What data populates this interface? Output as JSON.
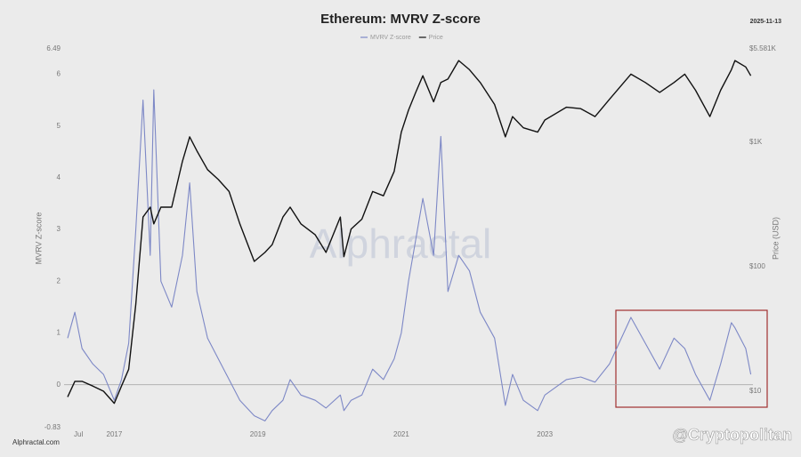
{
  "chart_data": {
    "type": "line",
    "title": "Ethereum: MVRV Z-score",
    "date": "2025-11-13",
    "ylabel": "MVRV Z-score",
    "y2label": "Price (USD)",
    "watermark": "Alphractal",
    "footer": "Alphractal.com",
    "credit": "@Cryptopolitan",
    "y2log": true,
    "xlim": [
      2016.3,
      2025.9
    ],
    "xticks": [
      {
        "value": 2016.5,
        "label": "Jul"
      },
      2017,
      2019,
      2021,
      2023
    ],
    "ylim": [
      -0.83,
      6.49
    ],
    "yticks": [
      -0.83,
      0,
      1,
      2,
      3,
      4,
      5,
      6,
      6.49
    ],
    "y2lim": [
      5.1,
      5581
    ],
    "y2ticks": [
      {
        "value": 10,
        "label": "$10"
      },
      {
        "value": 100,
        "label": "$100"
      },
      {
        "value": 1000,
        "label": "$1K"
      },
      {
        "value": 5581,
        "label": "$5.581K"
      }
    ],
    "x": [
      2016.35,
      2016.45,
      2016.55,
      2016.7,
      2016.85,
      2017.0,
      2017.1,
      2017.2,
      2017.3,
      2017.4,
      2017.5,
      2017.55,
      2017.65,
      2017.8,
      2017.95,
      2018.05,
      2018.15,
      2018.3,
      2018.45,
      2018.6,
      2018.75,
      2018.95,
      2019.1,
      2019.2,
      2019.35,
      2019.45,
      2019.6,
      2019.8,
      2019.95,
      2020.15,
      2020.2,
      2020.3,
      2020.45,
      2020.6,
      2020.75,
      2020.9,
      2021.0,
      2021.1,
      2021.2,
      2021.3,
      2021.45,
      2021.55,
      2021.65,
      2021.8,
      2021.95,
      2022.1,
      2022.3,
      2022.45,
      2022.55,
      2022.7,
      2022.9,
      2023.0,
      2023.3,
      2023.5,
      2023.7,
      2023.9,
      2024.2,
      2024.4,
      2024.6,
      2024.8,
      2024.95,
      2025.1,
      2025.3,
      2025.45,
      2025.6,
      2025.65,
      2025.8,
      2025.87
    ],
    "series": [
      {
        "name": "MVRV Z-score",
        "color": "#7d88c6",
        "values": [
          0.9,
          1.4,
          0.7,
          0.4,
          0.2,
          -0.3,
          0.1,
          0.8,
          3.0,
          5.5,
          2.5,
          5.7,
          2.0,
          1.5,
          2.5,
          3.9,
          1.8,
          0.9,
          0.5,
          0.1,
          -0.3,
          -0.6,
          -0.7,
          -0.5,
          -0.3,
          0.1,
          -0.2,
          -0.3,
          -0.45,
          -0.2,
          -0.5,
          -0.3,
          -0.2,
          0.3,
          0.1,
          0.5,
          1.0,
          2.0,
          2.8,
          3.6,
          2.5,
          4.8,
          1.8,
          2.5,
          2.2,
          1.4,
          0.9,
          -0.4,
          0.2,
          -0.3,
          -0.5,
          -0.2,
          0.1,
          0.15,
          0.05,
          0.4,
          1.3,
          0.8,
          0.3,
          0.9,
          0.7,
          0.2,
          -0.3,
          0.4,
          1.2,
          1.1,
          0.7,
          0.2
        ]
      },
      {
        "name": "Price",
        "color": "#111111",
        "axis": "y2",
        "values": [
          9,
          12,
          12,
          11,
          10,
          8,
          11,
          15,
          50,
          250,
          300,
          220,
          300,
          300,
          700,
          1100,
          850,
          600,
          500,
          400,
          220,
          110,
          130,
          150,
          250,
          300,
          220,
          180,
          130,
          250,
          120,
          200,
          240,
          400,
          370,
          580,
          1200,
          1800,
          2500,
          3400,
          2100,
          3000,
          3200,
          4500,
          3800,
          3000,
          2000,
          1100,
          1600,
          1300,
          1200,
          1500,
          1900,
          1850,
          1600,
          2200,
          3500,
          3000,
          2500,
          3000,
          3500,
          2600,
          1600,
          2600,
          3800,
          4500,
          4000,
          3400
        ]
      }
    ]
  }
}
